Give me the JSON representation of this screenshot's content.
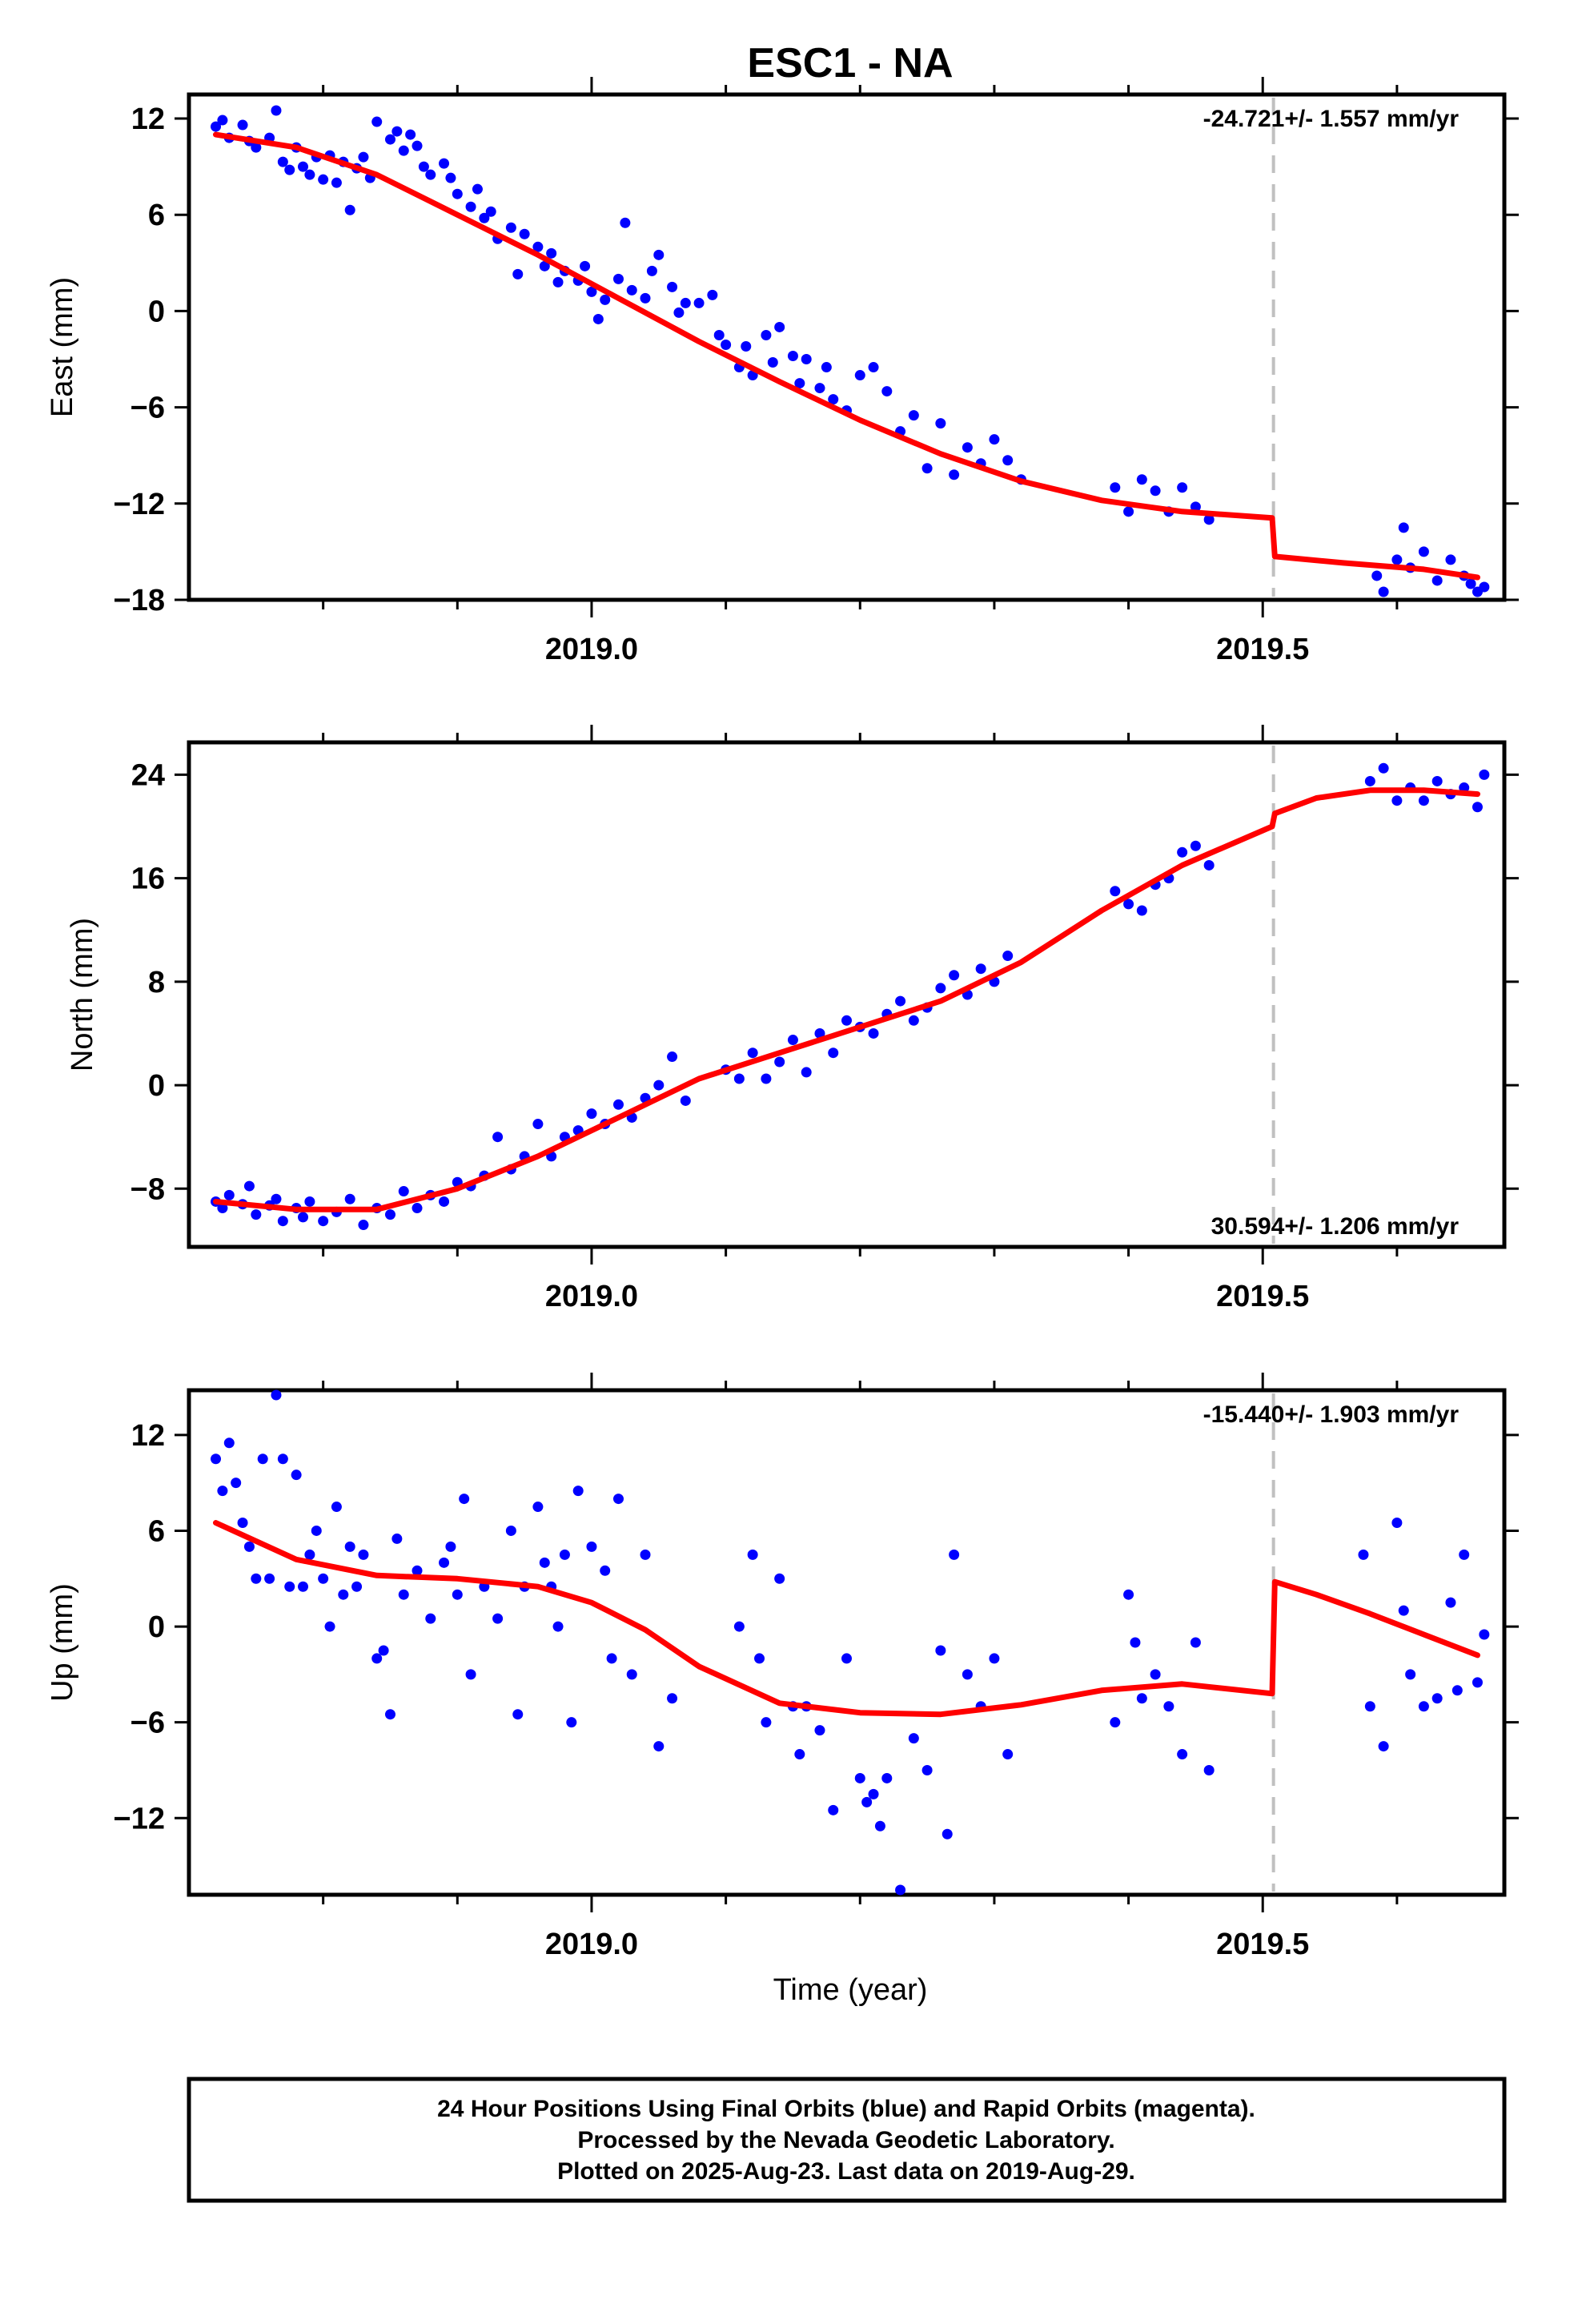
{
  "title": "ESC1 - NA",
  "x_axis": {
    "label": "Time (year)",
    "range": [
      2018.7,
      2019.68
    ],
    "major_ticks": [
      2019.0,
      2019.5
    ],
    "major_labels": [
      "2019.0",
      "2019.5"
    ],
    "minor_ticks": [
      2018.8,
      2018.9,
      2019.1,
      2019.2,
      2019.3,
      2019.4,
      2019.6
    ]
  },
  "event_time": 2019.508,
  "caption": {
    "line1": "24 Hour Positions Using Final Orbits (blue) and Rapid Orbits (magenta).",
    "line2": "Processed by the Nevada Geodetic Laboratory.",
    "line3": "Plotted on 2025-Aug-23. Last data on 2019-Aug-29."
  },
  "colors": {
    "points": "#0000ff",
    "model": "#ff0000",
    "event_line": "#c0c0c0",
    "frame": "#000000"
  },
  "chart_data": [
    {
      "type": "scatter",
      "component": "east",
      "ylabel": "East (mm)",
      "ylim": [
        -18,
        13.5
      ],
      "yticks": [
        12,
        6,
        0,
        -6,
        -12,
        -18
      ],
      "ytick_labels": [
        "12",
        "6",
        "0",
        "−6",
        "−12",
        "−18"
      ],
      "annotation": "-24.721+/- 1.557 mm/yr",
      "annotation_position": "top-right",
      "model": {
        "x": [
          2018.72,
          2018.78,
          2018.84,
          2018.9,
          2018.96,
          2019.02,
          2019.08,
          2019.14,
          2019.2,
          2019.26,
          2019.32,
          2019.38,
          2019.44,
          2019.507,
          2019.509,
          2019.56,
          2019.62,
          2019.66
        ],
        "y": [
          11.0,
          10.2,
          8.5,
          6.0,
          3.5,
          0.8,
          -1.9,
          -4.4,
          -6.8,
          -8.9,
          -10.6,
          -11.8,
          -12.5,
          -12.9,
          -15.3,
          -15.7,
          -16.1,
          -16.6
        ]
      },
      "points": {
        "x": [
          2018.72,
          2018.725,
          2018.73,
          2018.74,
          2018.745,
          2018.75,
          2018.76,
          2018.765,
          2018.77,
          2018.775,
          2018.78,
          2018.785,
          2018.79,
          2018.795,
          2018.8,
          2018.805,
          2018.81,
          2018.815,
          2018.82,
          2018.825,
          2018.83,
          2018.835,
          2018.84,
          2018.85,
          2018.855,
          2018.86,
          2018.865,
          2018.87,
          2018.875,
          2018.88,
          2018.89,
          2018.895,
          2018.9,
          2018.91,
          2018.915,
          2018.92,
          2018.925,
          2018.93,
          2018.94,
          2018.945,
          2018.95,
          2018.96,
          2018.965,
          2018.97,
          2018.975,
          2018.98,
          2018.99,
          2018.995,
          2019.0,
          2019.005,
          2019.01,
          2019.02,
          2019.025,
          2019.03,
          2019.04,
          2019.045,
          2019.05,
          2019.06,
          2019.065,
          2019.07,
          2019.08,
          2019.09,
          2019.095,
          2019.1,
          2019.11,
          2019.115,
          2019.12,
          2019.13,
          2019.135,
          2019.14,
          2019.15,
          2019.155,
          2019.16,
          2019.17,
          2019.175,
          2019.18,
          2019.19,
          2019.2,
          2019.21,
          2019.22,
          2019.23,
          2019.24,
          2019.25,
          2019.26,
          2019.27,
          2019.28,
          2019.29,
          2019.3,
          2019.31,
          2019.32,
          2019.39,
          2019.4,
          2019.41,
          2019.42,
          2019.43,
          2019.44,
          2019.45,
          2019.46,
          2019.585,
          2019.59,
          2019.6,
          2019.605,
          2019.61,
          2019.62,
          2019.63,
          2019.64,
          2019.65,
          2019.655,
          2019.66,
          2019.665
        ],
        "y": [
          11.5,
          11.9,
          10.8,
          11.6,
          10.6,
          10.2,
          10.8,
          12.5,
          9.3,
          8.8,
          10.2,
          9.0,
          8.5,
          9.6,
          8.2,
          9.7,
          8.0,
          9.3,
          6.3,
          8.9,
          9.6,
          8.3,
          11.8,
          10.7,
          11.2,
          10.0,
          11.0,
          10.3,
          9.0,
          8.5,
          9.2,
          8.3,
          7.3,
          6.5,
          7.6,
          5.8,
          6.2,
          4.5,
          5.2,
          2.3,
          4.8,
          4.0,
          2.8,
          3.6,
          1.8,
          2.5,
          1.9,
          2.8,
          1.2,
          -0.5,
          0.7,
          2.0,
          5.5,
          1.3,
          0.8,
          2.5,
          3.5,
          1.5,
          -0.1,
          0.5,
          0.5,
          1.0,
          -1.5,
          -2.1,
          -3.5,
          -2.2,
          -4.0,
          -1.5,
          -3.2,
          -1.0,
          -2.8,
          -4.5,
          -3.0,
          -4.8,
          -3.5,
          -5.5,
          -6.2,
          -4.0,
          -3.5,
          -5.0,
          -7.5,
          -6.5,
          -9.8,
          -7.0,
          -10.2,
          -8.5,
          -9.5,
          -8.0,
          -9.3,
          -10.5,
          -11.0,
          -12.5,
          -10.5,
          -11.2,
          -12.5,
          -11.0,
          -12.2,
          -13.0,
          -16.5,
          -17.5,
          -15.5,
          -13.5,
          -16.0,
          -15.0,
          -16.8,
          -15.5,
          -16.5,
          -17.0,
          -17.5,
          -17.2
        ]
      }
    },
    {
      "type": "scatter",
      "component": "north",
      "ylabel": "North (mm)",
      "ylim": [
        -12.5,
        26.5
      ],
      "yticks": [
        24,
        16,
        8,
        0,
        -8
      ],
      "ytick_labels": [
        "24",
        "16",
        "8",
        "0",
        "−8"
      ],
      "annotation": "30.594+/- 1.206 mm/yr",
      "annotation_position": "bottom-right",
      "model": {
        "x": [
          2018.72,
          2018.78,
          2018.84,
          2018.9,
          2018.96,
          2019.02,
          2019.08,
          2019.14,
          2019.2,
          2019.26,
          2019.32,
          2019.38,
          2019.44,
          2019.507,
          2019.509,
          2019.54,
          2019.58,
          2019.62,
          2019.66
        ],
        "y": [
          -9.0,
          -9.6,
          -9.6,
          -8.0,
          -5.5,
          -2.5,
          0.5,
          2.5,
          4.5,
          6.5,
          9.5,
          13.5,
          17.0,
          20.0,
          21.0,
          22.2,
          22.8,
          22.8,
          22.5
        ]
      },
      "points": {
        "x": [
          2018.72,
          2018.725,
          2018.73,
          2018.74,
          2018.745,
          2018.75,
          2018.76,
          2018.765,
          2018.77,
          2018.78,
          2018.785,
          2018.79,
          2018.8,
          2018.81,
          2018.82,
          2018.83,
          2018.84,
          2018.85,
          2018.86,
          2018.87,
          2018.88,
          2018.89,
          2018.9,
          2018.91,
          2018.92,
          2018.93,
          2018.94,
          2018.95,
          2018.96,
          2018.97,
          2018.98,
          2018.99,
          2019.0,
          2019.01,
          2019.02,
          2019.03,
          2019.04,
          2019.05,
          2019.06,
          2019.07,
          2019.1,
          2019.11,
          2019.12,
          2019.13,
          2019.14,
          2019.15,
          2019.16,
          2019.17,
          2019.18,
          2019.19,
          2019.2,
          2019.21,
          2019.22,
          2019.23,
          2019.24,
          2019.25,
          2019.26,
          2019.27,
          2019.28,
          2019.29,
          2019.3,
          2019.31,
          2019.39,
          2019.4,
          2019.41,
          2019.42,
          2019.43,
          2019.44,
          2019.45,
          2019.46,
          2019.58,
          2019.59,
          2019.6,
          2019.61,
          2019.62,
          2019.63,
          2019.64,
          2019.65,
          2019.66,
          2019.665
        ],
        "y": [
          -9.0,
          -9.5,
          -8.5,
          -9.2,
          -7.8,
          -10.0,
          -9.3,
          -8.8,
          -10.5,
          -9.5,
          -10.2,
          -9.0,
          -10.5,
          -9.8,
          -8.8,
          -10.8,
          -9.5,
          -10.0,
          -8.2,
          -9.5,
          -8.5,
          -9.0,
          -7.5,
          -7.8,
          -7.0,
          -4.0,
          -6.5,
          -5.5,
          -3.0,
          -5.5,
          -4.0,
          -3.5,
          -2.2,
          -3.0,
          -1.5,
          -2.5,
          -1.0,
          0.0,
          2.2,
          -1.2,
          1.2,
          0.5,
          2.5,
          0.5,
          1.8,
          3.5,
          1.0,
          4.0,
          2.5,
          5.0,
          4.5,
          4.0,
          5.5,
          6.5,
          5.0,
          6.0,
          7.5,
          8.5,
          7.0,
          9.0,
          8.0,
          10.0,
          15.0,
          14.0,
          13.5,
          15.5,
          16.0,
          18.0,
          18.5,
          17.0,
          23.5,
          24.5,
          22.0,
          23.0,
          22.0,
          23.5,
          22.5,
          23.0,
          21.5,
          24.0
        ]
      }
    },
    {
      "type": "scatter",
      "component": "up",
      "ylabel": "Up (mm)",
      "ylim": [
        -16.8,
        14.8
      ],
      "yticks": [
        12,
        6,
        0,
        -6,
        -12
      ],
      "ytick_labels": [
        "12",
        "6",
        "0",
        "−6",
        "−12"
      ],
      "annotation": "-15.440+/- 1.903 mm/yr",
      "annotation_position": "top-right",
      "model": {
        "x": [
          2018.72,
          2018.78,
          2018.84,
          2018.9,
          2018.96,
          2019.0,
          2019.04,
          2019.08,
          2019.14,
          2019.2,
          2019.26,
          2019.32,
          2019.38,
          2019.44,
          2019.507,
          2019.509,
          2019.54,
          2019.58,
          2019.62,
          2019.66
        ],
        "y": [
          6.5,
          4.2,
          3.2,
          3.0,
          2.5,
          1.5,
          -0.2,
          -2.5,
          -4.8,
          -5.4,
          -5.5,
          -4.9,
          -4.0,
          -3.6,
          -4.2,
          2.8,
          2.0,
          0.8,
          -0.5,
          -1.8
        ]
      },
      "points": {
        "x": [
          2018.72,
          2018.725,
          2018.73,
          2018.735,
          2018.74,
          2018.745,
          2018.75,
          2018.755,
          2018.76,
          2018.765,
          2018.77,
          2018.775,
          2018.78,
          2018.785,
          2018.79,
          2018.795,
          2018.8,
          2018.805,
          2018.81,
          2018.815,
          2018.82,
          2018.825,
          2018.83,
          2018.84,
          2018.845,
          2018.85,
          2018.855,
          2018.86,
          2018.87,
          2018.88,
          2018.89,
          2018.895,
          2018.9,
          2018.905,
          2018.91,
          2018.92,
          2018.93,
          2018.94,
          2018.945,
          2018.95,
          2018.96,
          2018.965,
          2018.97,
          2018.975,
          2018.98,
          2018.985,
          2018.99,
          2019.0,
          2019.01,
          2019.015,
          2019.02,
          2019.03,
          2019.04,
          2019.05,
          2019.06,
          2019.11,
          2019.12,
          2019.125,
          2019.13,
          2019.14,
          2019.15,
          2019.155,
          2019.16,
          2019.17,
          2019.18,
          2019.19,
          2019.2,
          2019.205,
          2019.21,
          2019.215,
          2019.22,
          2019.23,
          2019.24,
          2019.25,
          2019.26,
          2019.265,
          2019.27,
          2019.28,
          2019.29,
          2019.3,
          2019.31,
          2019.39,
          2019.4,
          2019.405,
          2019.41,
          2019.42,
          2019.43,
          2019.44,
          2019.45,
          2019.46,
          2019.575,
          2019.58,
          2019.59,
          2019.6,
          2019.605,
          2019.61,
          2019.62,
          2019.63,
          2019.64,
          2019.645,
          2019.65,
          2019.66,
          2019.665
        ],
        "y": [
          10.5,
          8.5,
          11.5,
          9.0,
          6.5,
          5.0,
          3.0,
          10.5,
          3.0,
          14.5,
          10.5,
          2.5,
          9.5,
          2.5,
          4.5,
          6.0,
          3.0,
          0.0,
          7.5,
          2.0,
          5.0,
          2.5,
          4.5,
          -2.0,
          -1.5,
          -5.5,
          5.5,
          2.0,
          3.5,
          0.5,
          4.0,
          5.0,
          2.0,
          8.0,
          -3.0,
          2.5,
          0.5,
          6.0,
          -5.5,
          2.5,
          7.5,
          4.0,
          2.5,
          0.0,
          4.5,
          -6.0,
          8.5,
          5.0,
          3.5,
          -2.0,
          8.0,
          -3.0,
          4.5,
          -7.5,
          -4.5,
          0.0,
          4.5,
          -2.0,
          -6.0,
          3.0,
          -5.0,
          -8.0,
          -5.0,
          -6.5,
          -11.5,
          -2.0,
          -9.5,
          -11.0,
          -10.5,
          -12.5,
          -9.5,
          -16.5,
          -7.0,
          -9.0,
          -1.5,
          -13.0,
          4.5,
          -3.0,
          -5.0,
          -2.0,
          -8.0,
          -6.0,
          2.0,
          -1.0,
          -4.5,
          -3.0,
          -5.0,
          -8.0,
          -1.0,
          -9.0,
          4.5,
          -5.0,
          -7.5,
          6.5,
          1.0,
          -3.0,
          -5.0,
          -4.5,
          1.5,
          -4.0,
          4.5,
          -3.5,
          -0.5
        ]
      }
    }
  ]
}
